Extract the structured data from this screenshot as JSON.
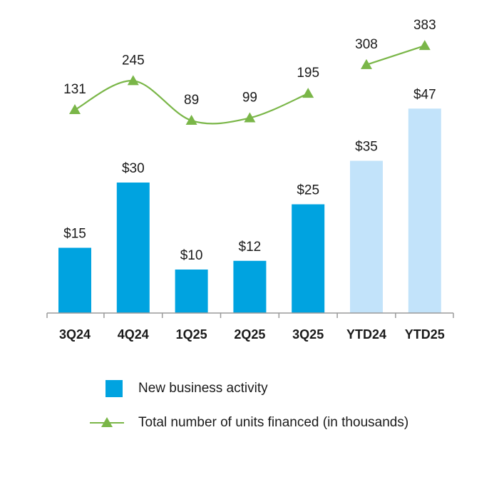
{
  "chart_data": {
    "type": "bar",
    "categories": [
      "3Q24",
      "4Q24",
      "1Q25",
      "2Q25",
      "3Q25",
      "YTD24",
      "YTD25"
    ],
    "series": [
      {
        "name": "New business activity",
        "kind": "bar",
        "values": [
          15,
          30,
          10,
          12,
          25,
          35,
          47
        ],
        "value_labels": [
          "$15",
          "$30",
          "$10",
          "$12",
          "$25",
          "$35",
          "$47"
        ],
        "colors": [
          "#00a3e0",
          "#00a3e0",
          "#00a3e0",
          "#00a3e0",
          "#00a3e0",
          "#c2e3fa",
          "#c2e3fa"
        ]
      },
      {
        "name": "Total number of units financed (in thousands)",
        "kind": "line",
        "marker": "triangle",
        "color": "#7ab648",
        "values": [
          131,
          245,
          89,
          99,
          195,
          308,
          383
        ],
        "value_labels": [
          "131",
          "245",
          "89",
          "99",
          "195",
          "308",
          "383"
        ],
        "segments": [
          [
            0,
            4
          ],
          [
            5,
            6
          ]
        ]
      }
    ],
    "title": "",
    "xlabel": "",
    "ylabel": "",
    "ylim": [
      0,
      55
    ],
    "line_ylim": [
      0,
      500
    ],
    "grid": false,
    "legend": "bottom",
    "legend_items": [
      {
        "label": "New business activity",
        "symbol": "bar",
        "color": "#00a3e0"
      },
      {
        "label": "Total number of units financed (in thousands)",
        "symbol": "line-triangle",
        "color": "#7ab648"
      }
    ]
  }
}
